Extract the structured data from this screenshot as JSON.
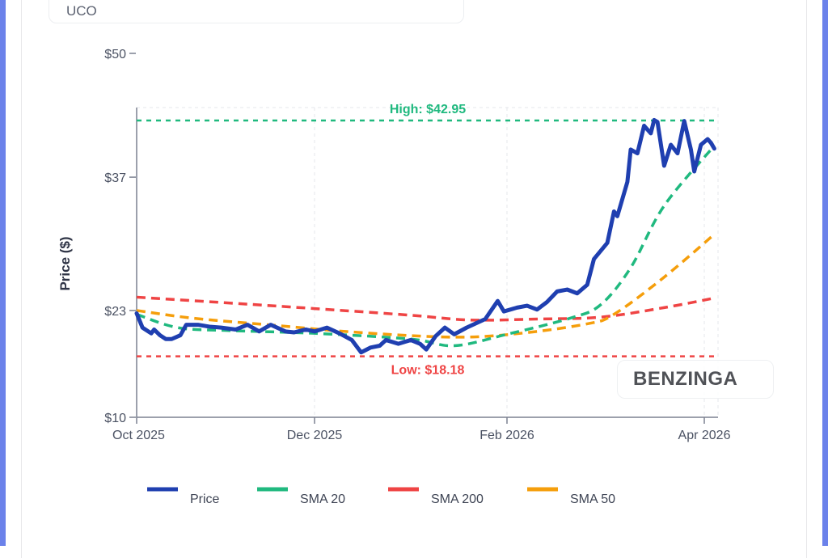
{
  "header": {
    "ticker": "UCO"
  },
  "watermark": "BENZINGA",
  "chart_data": {
    "type": "line",
    "title": "",
    "xlabel": "",
    "ylabel": "Price ($)",
    "ylim": [
      10,
      50
    ],
    "yticks": [
      {
        "value": 10,
        "label": "$10"
      },
      {
        "value": 23,
        "label": "$23"
      },
      {
        "value": 37,
        "label": "$37"
      },
      {
        "value": 50,
        "label": "$50"
      }
    ],
    "xticks": [
      {
        "date": "2025-10-01",
        "label": "Oct 2025"
      },
      {
        "date": "2025-12-01",
        "label": "Dec 2025"
      },
      {
        "date": "2026-02-01",
        "label": "Feb 2026"
      },
      {
        "date": "2026-04-01",
        "label": "Apr 2026"
      }
    ],
    "xrange": [
      "2025-10-01",
      "2026-04-05"
    ],
    "grid": true,
    "legend_position": "bottom",
    "reference_lines": [
      {
        "name": "High",
        "label": "High: $42.95",
        "value": 42.95,
        "color": "#20b97f"
      },
      {
        "name": "Low",
        "label": "Low: $18.18",
        "value": 18.18,
        "color": "#ef4444"
      }
    ],
    "series": [
      {
        "name": "Price",
        "color": "#1f3fb0",
        "style": "solid",
        "x": [
          "2025-10-01",
          "2025-10-03",
          "2025-10-04",
          "2025-10-06",
          "2025-10-07",
          "2025-10-09",
          "2025-10-11",
          "2025-10-13",
          "2025-10-16",
          "2025-10-18",
          "2025-10-22",
          "2025-10-26",
          "2025-10-30",
          "2025-11-04",
          "2025-11-08",
          "2025-11-12",
          "2025-11-16",
          "2025-11-21",
          "2025-11-24",
          "2025-11-28",
          "2025-12-01",
          "2025-12-05",
          "2025-12-09",
          "2025-12-13",
          "2025-12-16",
          "2025-12-19",
          "2025-12-22",
          "2025-12-24",
          "2025-12-28",
          "2026-01-01",
          "2026-01-04",
          "2026-01-06",
          "2026-01-09",
          "2026-01-12",
          "2026-01-15",
          "2026-01-19",
          "2026-01-25",
          "2026-01-29",
          "2026-01-31",
          "2026-02-04",
          "2026-02-07",
          "2026-02-10",
          "2026-02-13",
          "2026-02-16",
          "2026-02-19",
          "2026-02-22",
          "2026-02-25",
          "2026-02-27",
          "2026-03-03",
          "2026-03-05",
          "2026-03-06",
          "2026-03-09",
          "2026-03-10",
          "2026-03-12",
          "2026-03-14",
          "2026-03-16",
          "2026-03-17",
          "2026-03-18",
          "2026-03-20",
          "2026-03-22",
          "2026-03-24",
          "2026-03-26",
          "2026-03-28",
          "2026-03-29",
          "2026-03-31",
          "2026-04-02",
          "2026-04-03",
          "2026-04-04"
        ],
        "values": [
          22.7,
          21.2,
          21.0,
          20.6,
          21.0,
          20.4,
          20.0,
          20.0,
          20.4,
          21.5,
          21.5,
          21.3,
          21.2,
          21.0,
          21.5,
          20.8,
          21.5,
          20.8,
          20.7,
          21.0,
          20.8,
          21.2,
          20.6,
          19.9,
          18.6,
          19.1,
          19.3,
          19.9,
          19.5,
          19.9,
          19.5,
          18.9,
          20.3,
          21.2,
          20.5,
          21.2,
          22.1,
          24.0,
          22.9,
          23.3,
          23.5,
          23.1,
          23.9,
          25.0,
          25.2,
          24.8,
          25.7,
          28.4,
          30.1,
          33.4,
          32.9,
          36.5,
          39.9,
          39.5,
          42.4,
          41.6,
          43.0,
          42.8,
          38.2,
          40.4,
          39.5,
          42.9,
          39.9,
          37.6,
          40.4,
          41.0,
          40.6,
          40.0
        ]
      },
      {
        "name": "SMA 20",
        "color": "#20b97f",
        "style": "dashed",
        "x": [
          "2025-10-01",
          "2025-10-15",
          "2025-11-01",
          "2025-12-01",
          "2026-01-01",
          "2026-01-15",
          "2026-02-01",
          "2026-02-20",
          "2026-03-01",
          "2026-03-10",
          "2026-03-20",
          "2026-04-04"
        ],
        "values": [
          22.6,
          21.2,
          20.9,
          20.6,
          20.0,
          19.3,
          20.5,
          22.2,
          23.6,
          27.5,
          34.0,
          40.3
        ]
      },
      {
        "name": "SMA 200",
        "color": "#ef4444",
        "style": "dashed",
        "x": [
          "2025-10-01",
          "2025-11-01",
          "2025-12-01",
          "2026-01-01",
          "2026-01-20",
          "2026-02-10",
          "2026-03-01",
          "2026-03-20",
          "2026-04-04"
        ],
        "values": [
          24.4,
          23.8,
          23.2,
          22.5,
          22.0,
          22.1,
          22.3,
          23.3,
          24.3
        ]
      },
      {
        "name": "SMA 50",
        "color": "#f59e0b",
        "style": "dashed",
        "x": [
          "2025-10-01",
          "2025-10-20",
          "2025-11-15",
          "2025-12-15",
          "2026-01-15",
          "2026-02-05",
          "2026-02-25",
          "2026-03-05",
          "2026-03-20",
          "2026-04-04"
        ],
        "values": [
          23.0,
          22.2,
          21.5,
          20.7,
          20.2,
          20.6,
          21.6,
          22.6,
          26.5,
          31.0
        ]
      }
    ]
  }
}
